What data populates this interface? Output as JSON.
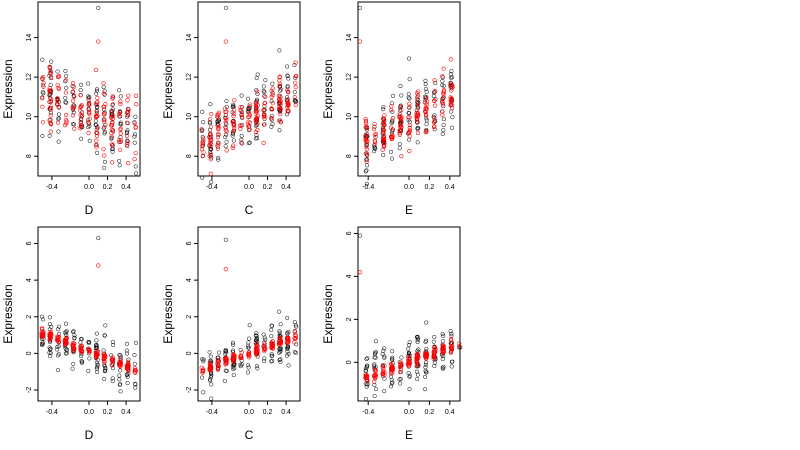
{
  "chart_data": [
    {
      "type": "scatter",
      "xlabel": "D",
      "ylabel": "Expression",
      "xlim": [
        -0.55,
        0.55
      ],
      "ylim": [
        7.0,
        15.8
      ],
      "xticks": [
        "-0.4",
        "0.0",
        "0.2",
        "0.4"
      ],
      "yticks": [
        "8",
        "10",
        "12",
        "14"
      ],
      "trend": {
        "slope": -1.8,
        "intercept": 10.2,
        "noise": 1.0
      },
      "fit": {
        "slope": -1.8,
        "intercept": 10.2,
        "noise": 0.9
      },
      "outliers_observed": [
        [
          0.1,
          15.5
        ]
      ],
      "outliers_fitted": [
        [
          0.1,
          13.8
        ]
      ]
    },
    {
      "type": "scatter",
      "xlabel": "C",
      "ylabel": "Expression",
      "xlim": [
        -0.55,
        0.55
      ],
      "ylim": [
        7.0,
        15.8
      ],
      "xticks": [
        "-0.4",
        "0.0",
        "0.2",
        "0.4"
      ],
      "yticks": [
        "8",
        "10",
        "12",
        "14"
      ],
      "trend": {
        "slope": 2.5,
        "intercept": 10.0,
        "noise": 0.8
      },
      "fit": {
        "slope": 2.5,
        "intercept": 10.0,
        "noise": 0.6
      },
      "outliers_observed": [
        [
          -0.25,
          15.5
        ]
      ],
      "outliers_fitted": [
        [
          -0.25,
          13.8
        ]
      ]
    },
    {
      "type": "scatter",
      "xlabel": "E",
      "ylabel": "Expression",
      "xlim": [
        -0.5,
        0.5
      ],
      "ylim": [
        7.0,
        15.8
      ],
      "xticks": [
        "-0.4",
        "0.0",
        "0.2",
        "0.4"
      ],
      "yticks": [
        "8",
        "10",
        "12",
        "14"
      ],
      "trend": {
        "slope": 3.0,
        "intercept": 9.9,
        "noise": 0.8
      },
      "fit": {
        "slope": 3.0,
        "intercept": 9.9,
        "noise": 0.6
      },
      "outliers_observed": [
        [
          -0.48,
          15.5
        ]
      ],
      "outliers_fitted": [
        [
          -0.48,
          13.8
        ]
      ]
    },
    {
      "type": "scatter",
      "xlabel": "D",
      "ylabel": "Expression",
      "xlim": [
        -0.55,
        0.55
      ],
      "ylim": [
        -2.6,
        6.9
      ],
      "xticks": [
        "-0.4",
        "0.0",
        "0.2",
        "0.4"
      ],
      "yticks": [
        "-2",
        "0",
        "2",
        "4",
        "6"
      ],
      "trend": {
        "slope": -2.0,
        "intercept": 0.1,
        "noise": 0.6
      },
      "fit": {
        "slope": -2.0,
        "intercept": 0.1,
        "noise": 0.12
      },
      "outliers_observed": [
        [
          0.1,
          6.3
        ]
      ],
      "outliers_fitted": [
        [
          0.1,
          4.8
        ]
      ]
    },
    {
      "type": "scatter",
      "xlabel": "C",
      "ylabel": "Expression",
      "xlim": [
        -0.55,
        0.55
      ],
      "ylim": [
        -2.6,
        6.9
      ],
      "xticks": [
        "-0.4",
        "0.0",
        "0.2",
        "0.4"
      ],
      "yticks": [
        "-2",
        "0",
        "2",
        "4",
        "6"
      ],
      "trend": {
        "slope": 1.8,
        "intercept": 0.0,
        "noise": 0.6
      },
      "fit": {
        "slope": 1.8,
        "intercept": 0.0,
        "noise": 0.12
      },
      "outliers_observed": [
        [
          -0.25,
          6.2
        ]
      ],
      "outliers_fitted": [
        [
          -0.25,
          4.6
        ]
      ]
    },
    {
      "type": "scatter",
      "xlabel": "E",
      "ylabel": "Expression",
      "xlim": [
        -0.5,
        0.5
      ],
      "ylim": [
        -1.8,
        6.3
      ],
      "xticks": [
        "-0.4",
        "0.0",
        "0.2",
        "0.4"
      ],
      "yticks": [
        "0",
        "2",
        "4",
        "6"
      ],
      "trend": {
        "slope": 1.7,
        "intercept": 0.0,
        "noise": 0.6
      },
      "fit": {
        "slope": 1.7,
        "intercept": 0.0,
        "noise": 0.12
      },
      "outliers_observed": [
        [
          -0.48,
          5.9
        ]
      ],
      "outliers_fitted": [
        [
          -0.48,
          4.2
        ]
      ]
    }
  ],
  "colors": {
    "observed": "#000000",
    "fitted": "#ff0000",
    "background": "#ffffff"
  }
}
